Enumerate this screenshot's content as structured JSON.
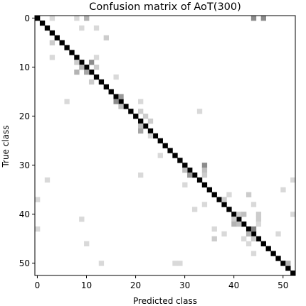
{
  "chart_data": {
    "type": "heatmap",
    "title": "Confusion matrix of AoT(300)",
    "xlabel": "Predicted class",
    "ylabel": "True class",
    "n_classes": 53,
    "xlim": [
      0,
      52
    ],
    "ylim": [
      52,
      0
    ],
    "x_ticks": [
      0,
      10,
      20,
      30,
      40,
      50
    ],
    "y_ticks": [
      0,
      10,
      20,
      30,
      40,
      50
    ],
    "colormap": "greys",
    "diagonal_intensity": 1.0,
    "cells": [
      {
        "row": 0,
        "col": 3,
        "v": 0.15
      },
      {
        "row": 0,
        "col": 8,
        "v": 0.15
      },
      {
        "row": 0,
        "col": 10,
        "v": 0.3
      },
      {
        "row": 0,
        "col": 44,
        "v": 0.45
      },
      {
        "row": 0,
        "col": 46,
        "v": 0.45
      },
      {
        "row": 2,
        "col": 9,
        "v": 0.15
      },
      {
        "row": 2,
        "col": 12,
        "v": 0.15
      },
      {
        "row": 4,
        "col": 14,
        "v": 0.2
      },
      {
        "row": 5,
        "col": 3,
        "v": 0.2
      },
      {
        "row": 8,
        "col": 3,
        "v": 0.15
      },
      {
        "row": 8,
        "col": 12,
        "v": 0.15
      },
      {
        "row": 9,
        "col": 8,
        "v": 0.2
      },
      {
        "row": 9,
        "col": 11,
        "v": 0.45
      },
      {
        "row": 10,
        "col": 9,
        "v": 0.3
      },
      {
        "row": 10,
        "col": 12,
        "v": 0.2
      },
      {
        "row": 11,
        "col": 8,
        "v": 0.3
      },
      {
        "row": 11,
        "col": 10,
        "v": 0.35
      },
      {
        "row": 12,
        "col": 16,
        "v": 0.15
      },
      {
        "row": 13,
        "col": 11,
        "v": 0.2
      },
      {
        "row": 16,
        "col": 17,
        "v": 0.4
      },
      {
        "row": 17,
        "col": 6,
        "v": 0.15
      },
      {
        "row": 17,
        "col": 16,
        "v": 0.45
      },
      {
        "row": 17,
        "col": 21,
        "v": 0.15
      },
      {
        "row": 18,
        "col": 17,
        "v": 0.25
      },
      {
        "row": 19,
        "col": 21,
        "v": 0.2
      },
      {
        "row": 19,
        "col": 33,
        "v": 0.15
      },
      {
        "row": 20,
        "col": 22,
        "v": 0.2
      },
      {
        "row": 21,
        "col": 23,
        "v": 0.2
      },
      {
        "row": 22,
        "col": 21,
        "v": 0.25
      },
      {
        "row": 23,
        "col": 21,
        "v": 0.35
      },
      {
        "row": 24,
        "col": 23,
        "v": 0.15
      },
      {
        "row": 28,
        "col": 25,
        "v": 0.15
      },
      {
        "row": 30,
        "col": 34,
        "v": 0.45
      },
      {
        "row": 31,
        "col": 30,
        "v": 0.25
      },
      {
        "row": 31,
        "col": 34,
        "v": 0.25
      },
      {
        "row": 32,
        "col": 21,
        "v": 0.15
      },
      {
        "row": 32,
        "col": 31,
        "v": 0.4
      },
      {
        "row": 32,
        "col": 34,
        "v": 0.2
      },
      {
        "row": 33,
        "col": 2,
        "v": 0.15
      },
      {
        "row": 33,
        "col": 52,
        "v": 0.15
      },
      {
        "row": 34,
        "col": 30,
        "v": 0.15
      },
      {
        "row": 35,
        "col": 50,
        "v": 0.15
      },
      {
        "row": 36,
        "col": 39,
        "v": 0.15
      },
      {
        "row": 36,
        "col": 43,
        "v": 0.2
      },
      {
        "row": 37,
        "col": 0,
        "v": 0.15
      },
      {
        "row": 37,
        "col": 38,
        "v": 0.2
      },
      {
        "row": 38,
        "col": 34,
        "v": 0.15
      },
      {
        "row": 38,
        "col": 44,
        "v": 0.15
      },
      {
        "row": 39,
        "col": 32,
        "v": 0.15
      },
      {
        "row": 40,
        "col": 41,
        "v": 0.2
      },
      {
        "row": 40,
        "col": 42,
        "v": 0.25
      },
      {
        "row": 40,
        "col": 45,
        "v": 0.2
      },
      {
        "row": 40,
        "col": 52,
        "v": 0.15
      },
      {
        "row": 41,
        "col": 9,
        "v": 0.15
      },
      {
        "row": 41,
        "col": 40,
        "v": 0.2
      },
      {
        "row": 41,
        "col": 45,
        "v": 0.2
      },
      {
        "row": 42,
        "col": 40,
        "v": 0.3
      },
      {
        "row": 42,
        "col": 41,
        "v": 0.25
      },
      {
        "row": 42,
        "col": 45,
        "v": 0.15
      },
      {
        "row": 43,
        "col": 0,
        "v": 0.15
      },
      {
        "row": 43,
        "col": 36,
        "v": 0.15
      },
      {
        "row": 43,
        "col": 44,
        "v": 0.5
      },
      {
        "row": 44,
        "col": 38,
        "v": 0.15
      },
      {
        "row": 44,
        "col": 43,
        "v": 0.3
      },
      {
        "row": 44,
        "col": 49,
        "v": 0.15
      },
      {
        "row": 45,
        "col": 36,
        "v": 0.2
      },
      {
        "row": 45,
        "col": 42,
        "v": 0.15
      },
      {
        "row": 45,
        "col": 44,
        "v": 0.2
      },
      {
        "row": 46,
        "col": 10,
        "v": 0.15
      },
      {
        "row": 46,
        "col": 43,
        "v": 0.15
      },
      {
        "row": 48,
        "col": 44,
        "v": 0.15
      },
      {
        "row": 50,
        "col": 13,
        "v": 0.15
      },
      {
        "row": 50,
        "col": 28,
        "v": 0.15
      },
      {
        "row": 50,
        "col": 29,
        "v": 0.15
      },
      {
        "row": 50,
        "col": 51,
        "v": 0.3
      }
    ]
  }
}
